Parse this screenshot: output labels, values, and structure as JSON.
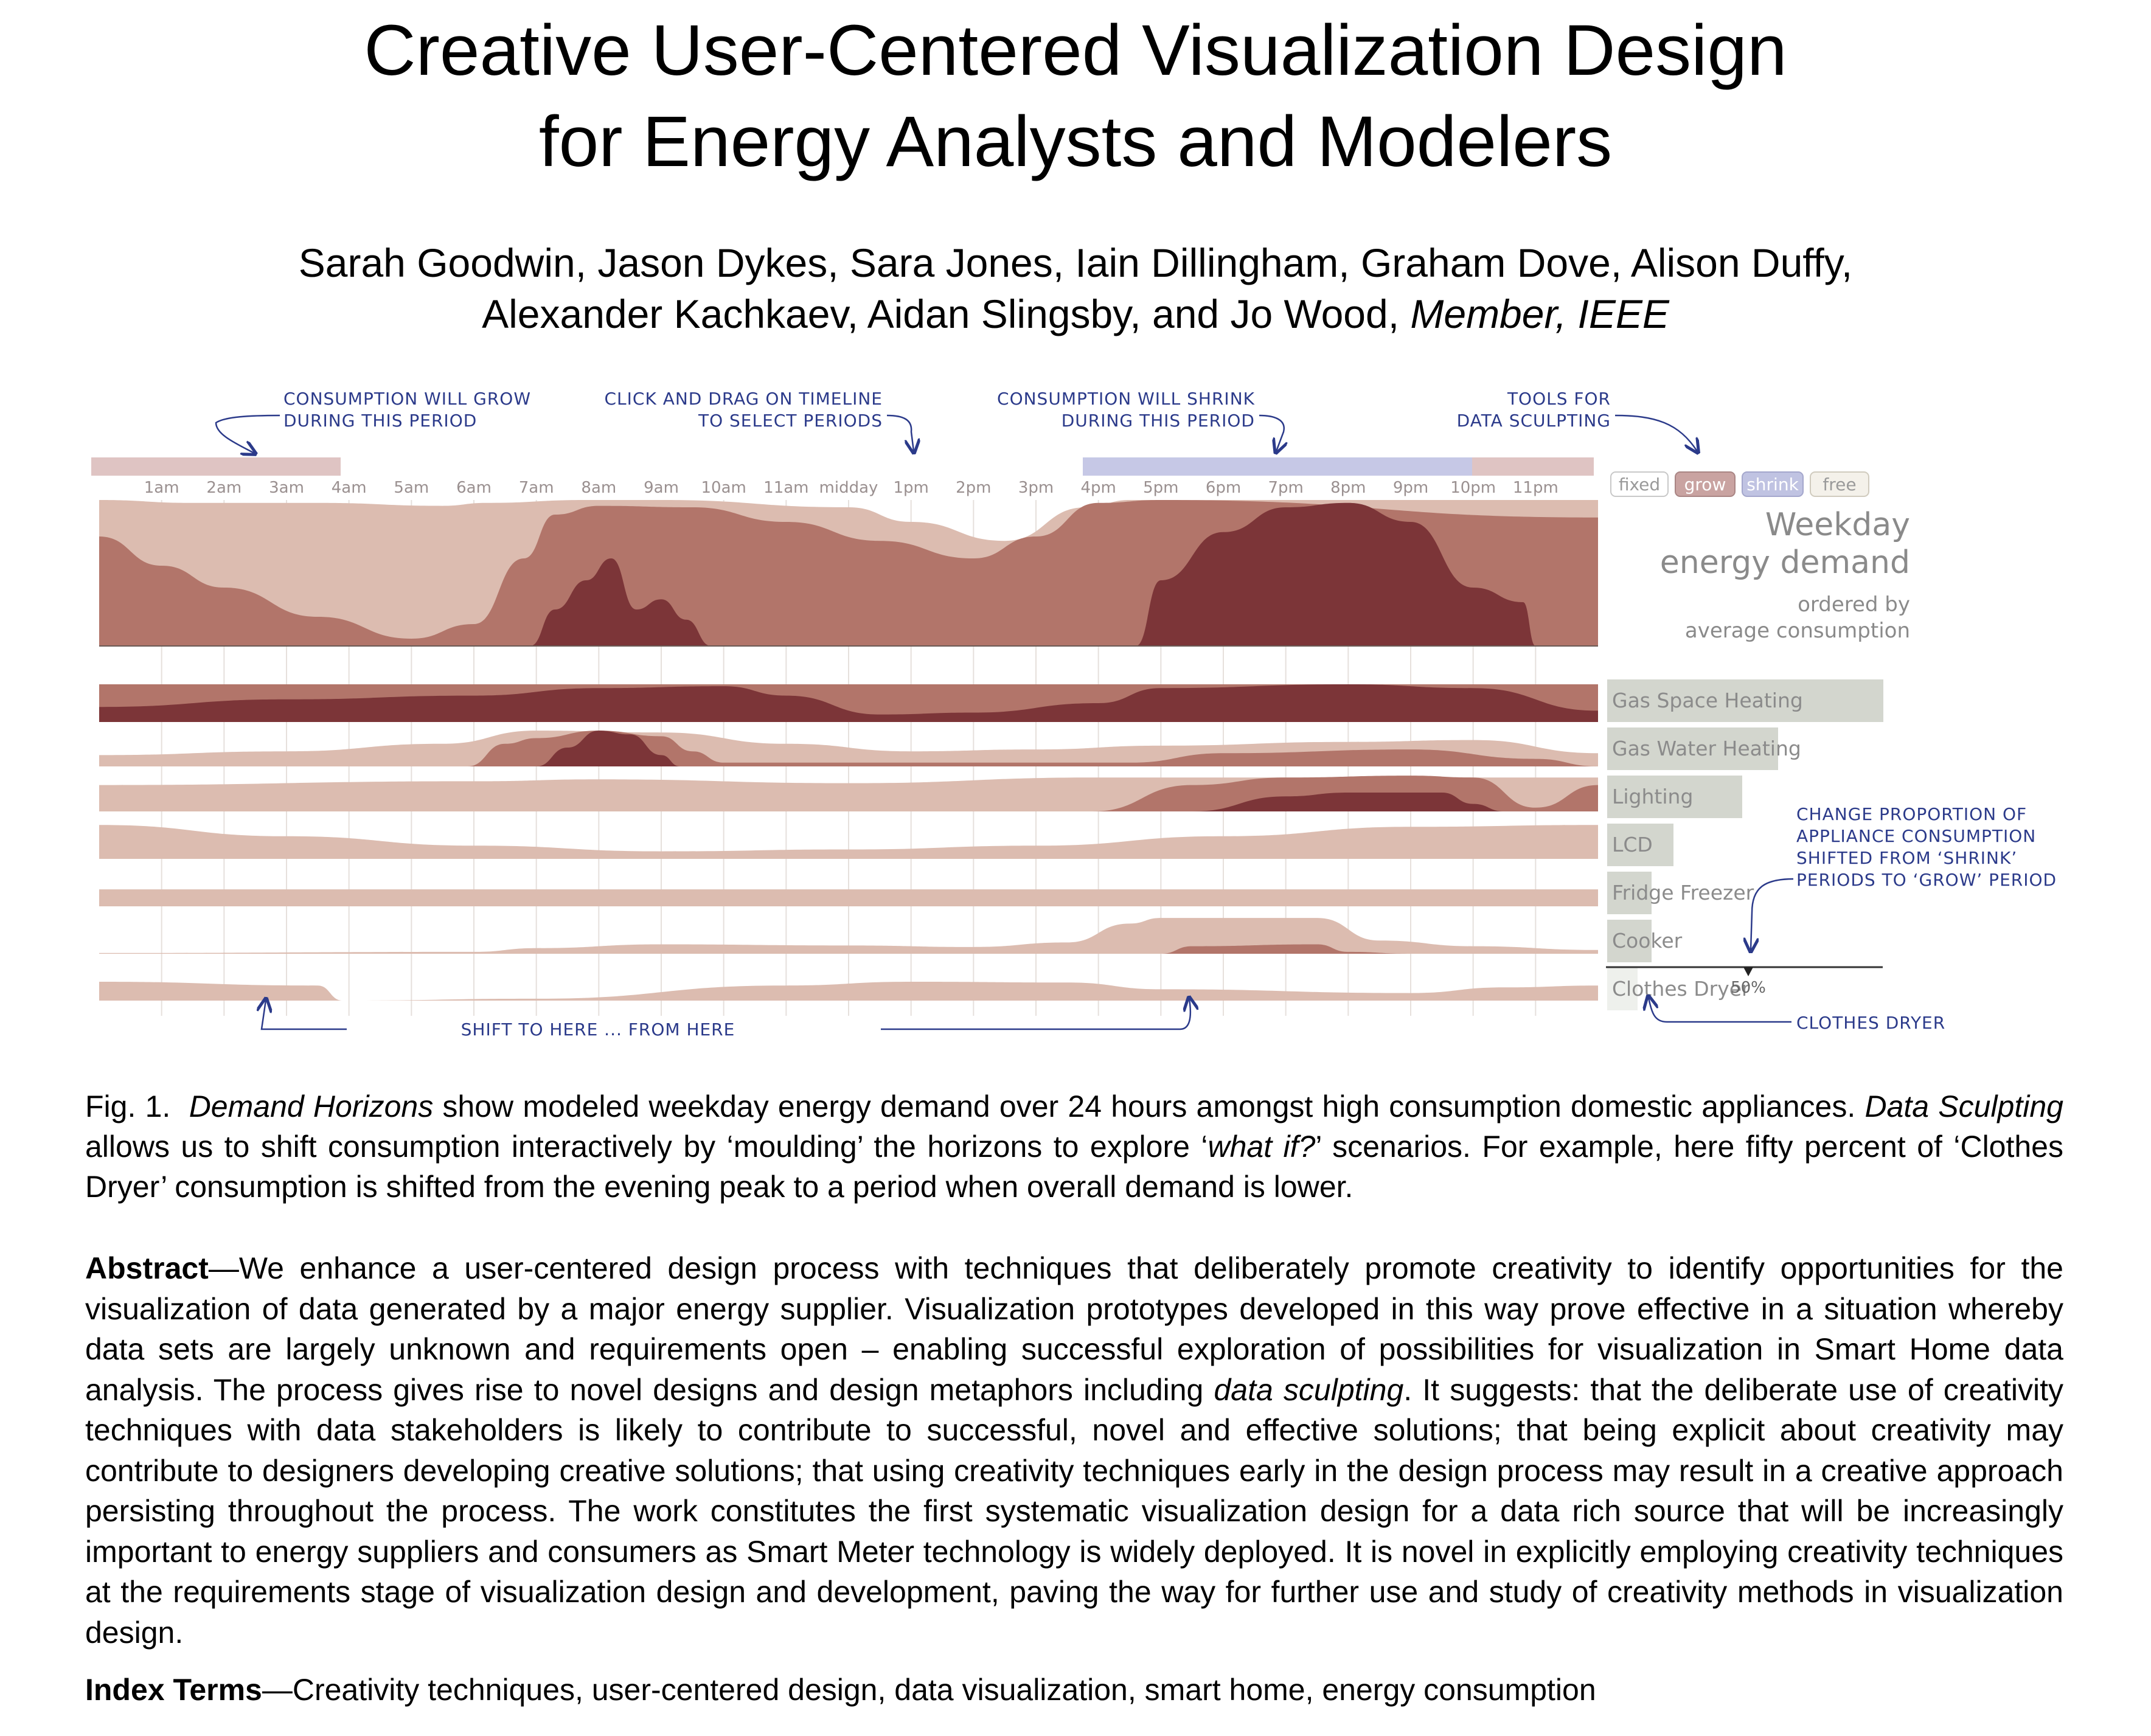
{
  "title": {
    "line1": "Creative User-Centered Visualization Design",
    "line2": "for Energy Analysts and Modelers"
  },
  "authors": {
    "line1": "Sarah Goodwin, Jason Dykes, Sara Jones, Iain Dillingham, Graham Dove, Alison Duffy,",
    "line2_names": "Alexander Kachkaev, Aidan Slingsby, and Jo Wood,",
    "line2_member": "Member, IEEE"
  },
  "figure": {
    "annotations": {
      "grow_1": "CONSUMPTION WILL GROW",
      "grow_2": "DURING THIS PERIOD",
      "drag_1": "CLICK AND DRAG ON TIMELINE",
      "drag_2": "TO SELECT PERIODS",
      "shrink_1": "CONSUMPTION WILL SHRINK",
      "shrink_2": "DURING THIS PERIOD",
      "tools_1": "TOOLS FOR",
      "tools_2": "DATA SCULPTING",
      "proportion_1": "CHANGE PROPORTION OF",
      "proportion_2": "APPLIANCE CONSUMPTION",
      "proportion_3": "SHIFTED FROM ‘SHRINK’",
      "proportion_4": "PERIODS TO ‘GROW’ PERIODS",
      "shift": "SHIFT TO HERE ... FROM HERE",
      "dryer": "CLOTHES DRYER"
    },
    "hours": [
      "1am",
      "2am",
      "3am",
      "4am",
      "5am",
      "6am",
      "7am",
      "8am",
      "9am",
      "10am",
      "11am",
      "midday",
      "1pm",
      "2pm",
      "3pm",
      "4pm",
      "5pm",
      "6pm",
      "7pm",
      "8pm",
      "9pm",
      "10pm",
      "11pm"
    ],
    "tools": [
      "fixed",
      "grow",
      "shrink",
      "free"
    ],
    "legend": {
      "line1": "Weekday",
      "line2": "energy demand",
      "line3": "ordered by",
      "line4": "average consumption"
    },
    "appliances": [
      {
        "name": "Gas Space Heating",
        "share": 1.0
      },
      {
        "name": "Gas Water Heating",
        "share": 0.62
      },
      {
        "name": "Lighting",
        "share": 0.49
      },
      {
        "name": "LCD",
        "share": 0.24
      },
      {
        "name": "Fridge Freezer",
        "share": 0.16
      },
      {
        "name": "Cooker",
        "share": 0.16
      },
      {
        "name": "Clothes Dryer",
        "share": 0.11
      }
    ],
    "slider_value": "50%",
    "colors": {
      "light": "#dcbcb0",
      "mid": "#b2756a",
      "dark": "#7c3538",
      "grow": "#c9a3a1",
      "shrink": "#c0c3e2",
      "annot": "#2b3a8a",
      "bar": "#d3d6ce"
    }
  },
  "caption": {
    "fig": "Fig. 1.",
    "em1": "Demand Horizons",
    "t1": " show modeled weekday energy demand over 24 hours amongst high consumption domestic appliances. ",
    "em2": "Data Sculpting",
    "t2": " allows us to shift consumption interactively by ‘moulding’ the horizons to explore ‘",
    "em3": "what if?",
    "t3": "’ scenarios. For example, here fifty percent of ‘Clothes Dryer’ consumption is shifted from the evening peak to a period when overall demand is lower."
  },
  "abstract": {
    "label": "Abstract",
    "t1": "—We enhance a user-centered design process with techniques that deliberately promote creativity to identify opportunities for the visualization of data generated by a major energy supplier. Visualization prototypes developed in this way prove effective in a situation whereby data sets are largely unknown and requirements open – enabling successful exploration of possibilities for visualization in Smart Home data analysis. The process gives rise to novel designs and design metaphors including ",
    "em": "data sculpting",
    "t2": ". It suggests: that the deliberate use of creativity techniques with data stakeholders is likely to contribute to successful, novel and effective solutions; that being explicit about creativity may contribute to designers developing creative solutions; that using creativity techniques early in the design process may result in a creative approach persisting throughout the process. The work constitutes the first systematic visualization design for a data rich source that will be increasingly important to energy suppliers and consumers as Smart Meter technology is widely deployed. It is novel in explicitly employing creativity techniques at the requirements stage of visualization design and development, paving the way for further use and study of creativity methods in visualization design."
  },
  "index_terms": {
    "label": "Index Terms",
    "text": "—Creativity techniques, user-centered design, data visualization, smart home, energy consumption"
  }
}
